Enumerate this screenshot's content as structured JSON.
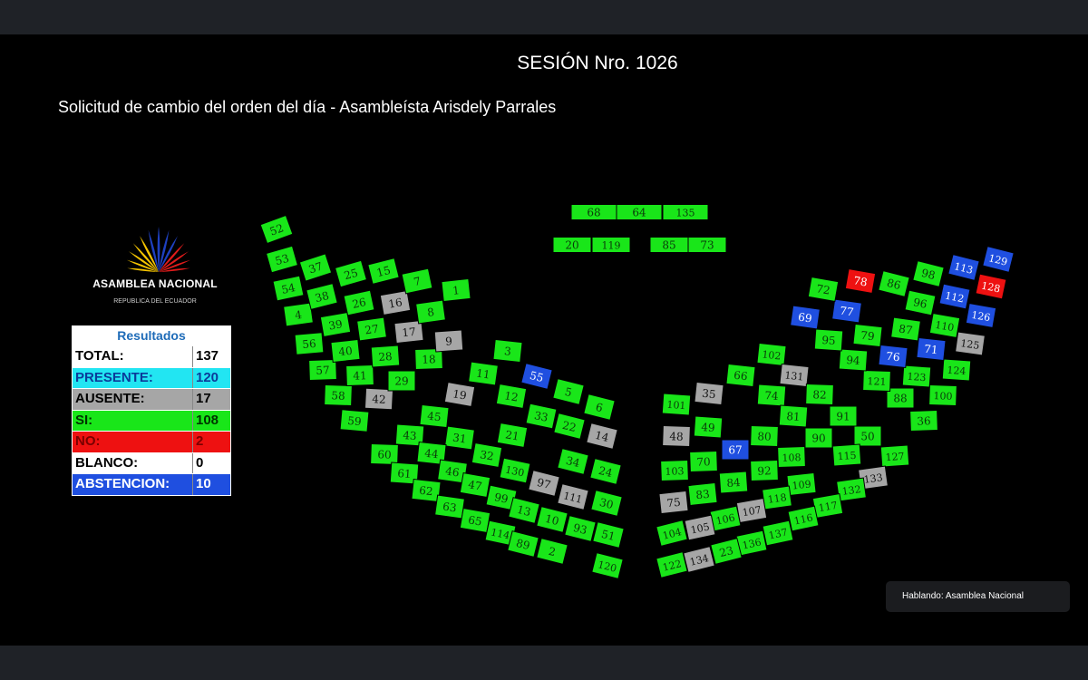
{
  "session_title": "SESIÓN Nro. 1026",
  "motion_title": "Solicitud de cambio del orden del día - Asambleísta Arisdely Parrales",
  "logo": {
    "name": "ASAMBLEA NACIONAL",
    "subtitle": "REPUBLICA DEL ECUADOR"
  },
  "results": {
    "header": "Resultados",
    "rows": [
      {
        "label": "TOTAL:",
        "value": "137"
      },
      {
        "label": "PRESENTE:",
        "value": "120"
      },
      {
        "label": "AUSENTE:",
        "value": "17"
      },
      {
        "label": "SI:",
        "value": "108"
      },
      {
        "label": "NO:",
        "value": "2"
      },
      {
        "label": "BLANCO:",
        "value": "0"
      },
      {
        "label": "ABSTENCION:",
        "value": "10"
      }
    ]
  },
  "colors": {
    "si": "#19e619",
    "no": "#ee1111",
    "ausente": "#a6a6a6",
    "abstencion": "#1f4fe0"
  },
  "seats": {
    "head": [
      {
        "n": "68",
        "v": "si"
      },
      {
        "n": "64",
        "v": "si"
      },
      {
        "n": "135",
        "v": "si"
      },
      {
        "n": "20",
        "v": "si"
      },
      {
        "n": "119",
        "v": "si"
      },
      {
        "n": "85",
        "v": "si"
      },
      {
        "n": "73",
        "v": "si"
      }
    ],
    "left": [
      {
        "n": "52",
        "v": "si"
      },
      {
        "n": "53",
        "v": "si"
      },
      {
        "n": "54",
        "v": "si"
      },
      {
        "n": "4",
        "v": "si"
      },
      {
        "n": "56",
        "v": "si"
      },
      {
        "n": "57",
        "v": "si"
      },
      {
        "n": "58",
        "v": "si"
      },
      {
        "n": "59",
        "v": "si"
      },
      {
        "n": "37",
        "v": "si"
      },
      {
        "n": "38",
        "v": "si"
      },
      {
        "n": "39",
        "v": "si"
      },
      {
        "n": "40",
        "v": "si"
      },
      {
        "n": "41",
        "v": "si"
      },
      {
        "n": "42",
        "v": "ausente"
      },
      {
        "n": "25",
        "v": "si"
      },
      {
        "n": "26",
        "v": "si"
      },
      {
        "n": "27",
        "v": "si"
      },
      {
        "n": "28",
        "v": "si"
      },
      {
        "n": "29",
        "v": "si"
      },
      {
        "n": "15",
        "v": "si"
      },
      {
        "n": "16",
        "v": "ausente"
      },
      {
        "n": "17",
        "v": "ausente"
      },
      {
        "n": "18",
        "v": "si"
      },
      {
        "n": "7",
        "v": "si"
      },
      {
        "n": "8",
        "v": "si"
      },
      {
        "n": "9",
        "v": "ausente"
      },
      {
        "n": "1",
        "v": "si"
      },
      {
        "n": "3",
        "v": "si"
      },
      {
        "n": "55",
        "v": "abstencion"
      },
      {
        "n": "5",
        "v": "si"
      },
      {
        "n": "6",
        "v": "si"
      },
      {
        "n": "11",
        "v": "si"
      },
      {
        "n": "19",
        "v": "ausente"
      },
      {
        "n": "12",
        "v": "si"
      },
      {
        "n": "33",
        "v": "si"
      },
      {
        "n": "22",
        "v": "si"
      },
      {
        "n": "14",
        "v": "ausente"
      },
      {
        "n": "45",
        "v": "si"
      },
      {
        "n": "21",
        "v": "si"
      },
      {
        "n": "31",
        "v": "si"
      },
      {
        "n": "32",
        "v": "si"
      },
      {
        "n": "34",
        "v": "si"
      },
      {
        "n": "24",
        "v": "si"
      },
      {
        "n": "43",
        "v": "si"
      },
      {
        "n": "44",
        "v": "si"
      },
      {
        "n": "46",
        "v": "si"
      },
      {
        "n": "47",
        "v": "si"
      },
      {
        "n": "130",
        "v": "si"
      },
      {
        "n": "97",
        "v": "ausente"
      },
      {
        "n": "111",
        "v": "ausente"
      },
      {
        "n": "30",
        "v": "si"
      },
      {
        "n": "60",
        "v": "si"
      },
      {
        "n": "61",
        "v": "si"
      },
      {
        "n": "62",
        "v": "si"
      },
      {
        "n": "63",
        "v": "si"
      },
      {
        "n": "65",
        "v": "si"
      },
      {
        "n": "99",
        "v": "si"
      },
      {
        "n": "13",
        "v": "si"
      },
      {
        "n": "10",
        "v": "si"
      },
      {
        "n": "93",
        "v": "si"
      },
      {
        "n": "51",
        "v": "si"
      },
      {
        "n": "114",
        "v": "si"
      },
      {
        "n": "89",
        "v": "si"
      },
      {
        "n": "2",
        "v": "si"
      },
      {
        "n": "120",
        "v": "si"
      }
    ],
    "right": [
      {
        "n": "129",
        "v": "abstencion"
      },
      {
        "n": "128",
        "v": "no"
      },
      {
        "n": "126",
        "v": "abstencion"
      },
      {
        "n": "125",
        "v": "ausente"
      },
      {
        "n": "124",
        "v": "si"
      },
      {
        "n": "100",
        "v": "si"
      },
      {
        "n": "36",
        "v": "si"
      },
      {
        "n": "113",
        "v": "abstencion"
      },
      {
        "n": "112",
        "v": "abstencion"
      },
      {
        "n": "110",
        "v": "si"
      },
      {
        "n": "71",
        "v": "abstencion"
      },
      {
        "n": "123",
        "v": "si"
      },
      {
        "n": "88",
        "v": "si"
      },
      {
        "n": "98",
        "v": "si"
      },
      {
        "n": "96",
        "v": "si"
      },
      {
        "n": "87",
        "v": "si"
      },
      {
        "n": "76",
        "v": "abstencion"
      },
      {
        "n": "121",
        "v": "si"
      },
      {
        "n": "86",
        "v": "si"
      },
      {
        "n": "78",
        "v": "no"
      },
      {
        "n": "77",
        "v": "abstencion"
      },
      {
        "n": "79",
        "v": "si"
      },
      {
        "n": "94",
        "v": "si"
      },
      {
        "n": "72",
        "v": "si"
      },
      {
        "n": "69",
        "v": "abstencion"
      },
      {
        "n": "95",
        "v": "si"
      },
      {
        "n": "102",
        "v": "si"
      },
      {
        "n": "131",
        "v": "ausente"
      },
      {
        "n": "66",
        "v": "si"
      },
      {
        "n": "35",
        "v": "ausente"
      },
      {
        "n": "101",
        "v": "si"
      },
      {
        "n": "74",
        "v": "si"
      },
      {
        "n": "82",
        "v": "si"
      },
      {
        "n": "81",
        "v": "si"
      },
      {
        "n": "49",
        "v": "si"
      },
      {
        "n": "48",
        "v": "ausente"
      },
      {
        "n": "91",
        "v": "si"
      },
      {
        "n": "80",
        "v": "si"
      },
      {
        "n": "67",
        "v": "abstencion"
      },
      {
        "n": "50",
        "v": "si"
      },
      {
        "n": "90",
        "v": "si"
      },
      {
        "n": "108",
        "v": "si"
      },
      {
        "n": "92",
        "v": "si"
      },
      {
        "n": "70",
        "v": "si"
      },
      {
        "n": "103",
        "v": "si"
      },
      {
        "n": "127",
        "v": "si"
      },
      {
        "n": "115",
        "v": "si"
      },
      {
        "n": "109",
        "v": "si"
      },
      {
        "n": "84",
        "v": "si"
      },
      {
        "n": "83",
        "v": "si"
      },
      {
        "n": "75",
        "v": "ausente"
      },
      {
        "n": "133",
        "v": "ausente"
      },
      {
        "n": "132",
        "v": "si"
      },
      {
        "n": "117",
        "v": "si"
      },
      {
        "n": "118",
        "v": "si"
      },
      {
        "n": "107",
        "v": "ausente"
      },
      {
        "n": "106",
        "v": "si"
      },
      {
        "n": "105",
        "v": "ausente"
      },
      {
        "n": "104",
        "v": "si"
      },
      {
        "n": "116",
        "v": "si"
      },
      {
        "n": "137",
        "v": "si"
      },
      {
        "n": "136",
        "v": "si"
      },
      {
        "n": "23",
        "v": "si"
      },
      {
        "n": "134",
        "v": "ausente"
      },
      {
        "n": "122",
        "v": "si"
      }
    ]
  },
  "speaker": "Hablando: Asamblea Nacional"
}
